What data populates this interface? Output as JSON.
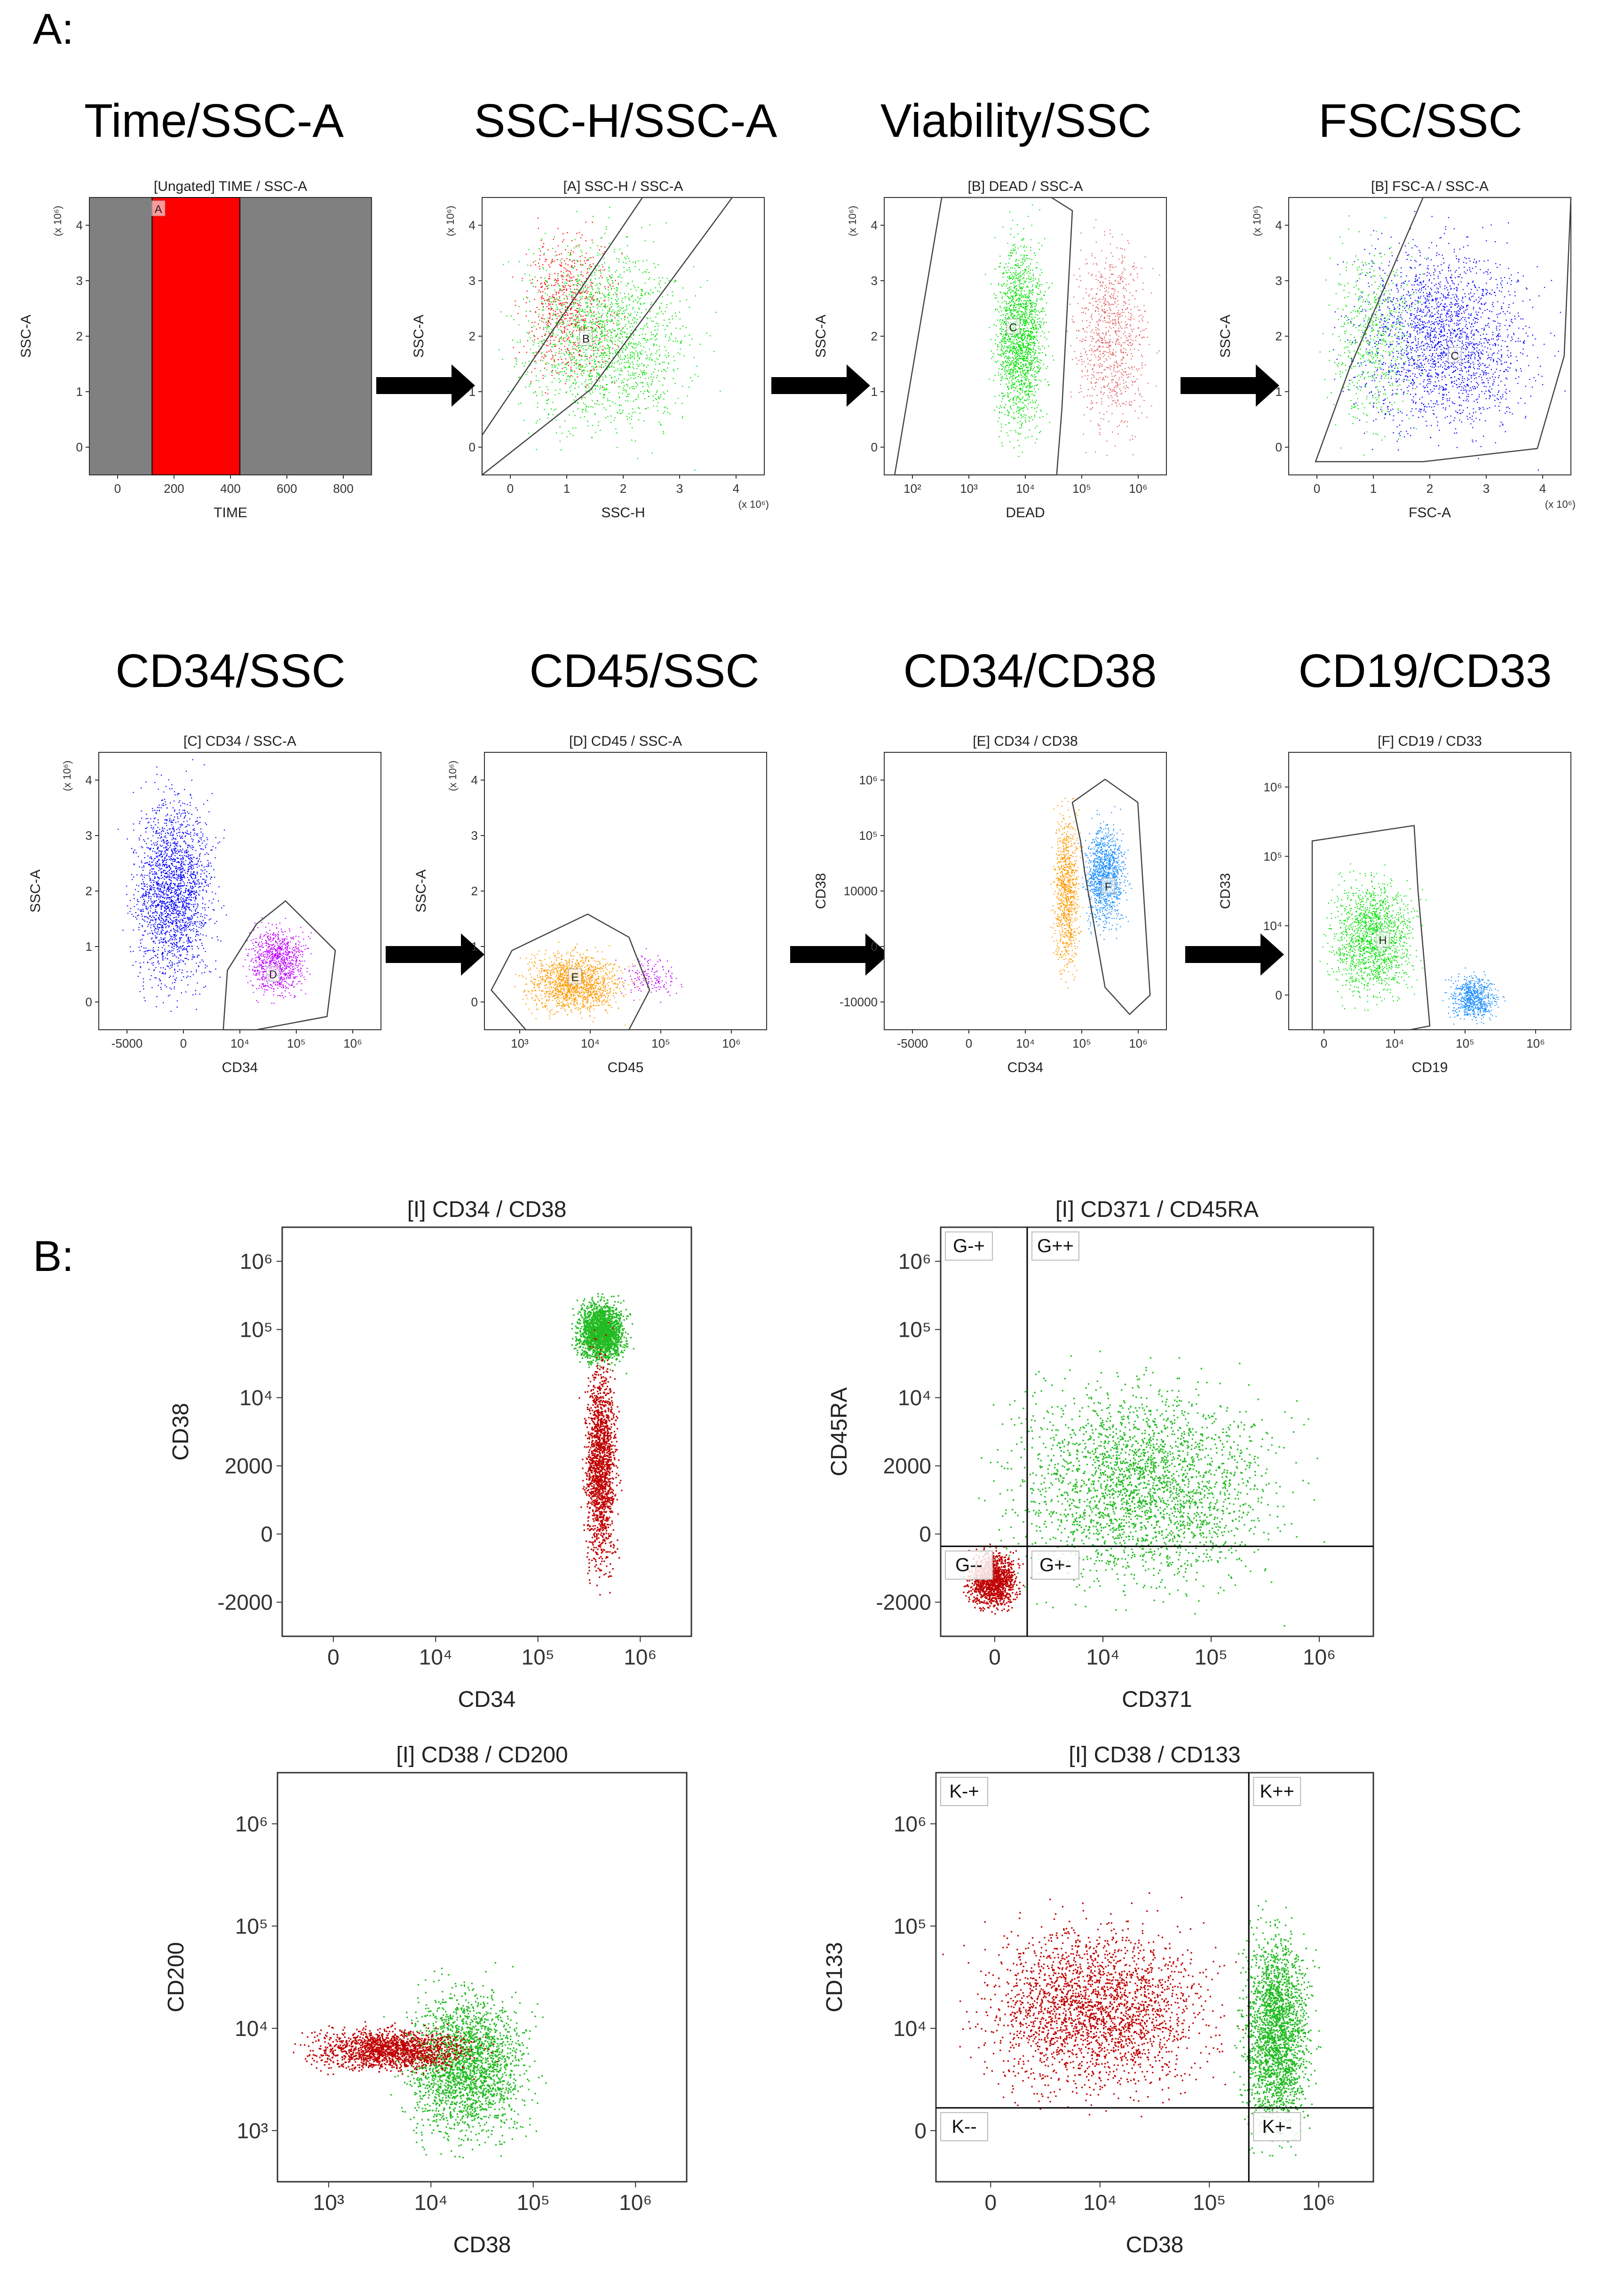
{
  "figure": {
    "panel_a_label": "A:",
    "panel_b_label": "B:",
    "row1_titles": [
      "Time/SSC-A",
      "SSC-H/SSC-A",
      "Viability/SSC",
      "FSC/SSC"
    ],
    "row2_titles": [
      "CD34/SSC",
      "CD45/SSC",
      "CD34/CD38",
      "CD19/CD33"
    ]
  },
  "colors": {
    "red": "#ff0000",
    "green": "#00e000",
    "blue": "#0000ff",
    "magenta": "#c000ff",
    "orange": "#ff9900",
    "light_blue": "#1e90ff",
    "salmon": "#e06060",
    "dark_red": "#c00000",
    "b_green": "#22bb22",
    "gray": "#808080"
  },
  "chart_data": [
    {
      "type": "scatter",
      "id": "time-ssc",
      "title": "[Ungated] TIME / SSC-A",
      "xlabel": "TIME",
      "ylabel": "SSC-A",
      "yunit": "(x 10⁶)",
      "xlim": [
        0,
        900
      ],
      "ylim": [
        0,
        4.2
      ],
      "xticks": [
        "0",
        "200",
        "400",
        "600",
        "800"
      ],
      "yticks": [
        "0",
        "1",
        "2",
        "3",
        "4"
      ],
      "background": "#808080",
      "highlight_band": {
        "x": [
          200,
          480
        ],
        "color": "#ff0000"
      },
      "gates": [
        {
          "label": "A",
          "x": [
            200,
            480
          ]
        }
      ]
    },
    {
      "type": "scatter",
      "id": "ssch-ssca",
      "title": "[A] SSC-H / SSC-A",
      "xlabel": "SSC-H",
      "ylabel": "SSC-A",
      "xunit": "(x 10⁶)",
      "yunit": "(x 10⁶)",
      "xlim": [
        0,
        4.4
      ],
      "ylim": [
        0,
        4.2
      ],
      "xticks": [
        "0",
        "1",
        "2",
        "3",
        "4"
      ],
      "yticks": [
        "0",
        "1",
        "2",
        "3",
        "4"
      ],
      "populations": [
        {
          "color": "#ff0000",
          "count": 700,
          "x_range": [
            0.3,
            2.4
          ],
          "y_range": [
            0.8,
            4.2
          ]
        },
        {
          "color": "#00e000",
          "count": 1800,
          "x_range": [
            0,
            3.8
          ],
          "y_range": [
            0,
            4.2
          ]
        }
      ],
      "gates": [
        {
          "label": "B",
          "points": [
            [
              0,
              0.6
            ],
            [
              2.5,
              4.2
            ],
            [
              3.9,
              4.2
            ],
            [
              1.7,
              1.3
            ],
            [
              0,
              0
            ]
          ]
        }
      ]
    },
    {
      "type": "scatter",
      "id": "dead-ssc",
      "title": "[B] DEAD / SSC-A",
      "xlabel": "DEAD",
      "ylabel": "SSC-A",
      "yunit": "(x 10⁶)",
      "xlim": [
        1.3,
        6.7
      ],
      "ylim": [
        0,
        4.2
      ],
      "xticks": [
        "10²",
        "10³",
        "10⁴",
        "10⁵",
        "10⁶"
      ],
      "yticks": [
        "0",
        "1",
        "2",
        "3",
        "4"
      ],
      "populations": [
        {
          "color": "#00e000",
          "count": 1800,
          "x_range": [
            3.2,
            4.6
          ],
          "y_range": [
            0,
            4.2
          ]
        },
        {
          "color": "#e06060",
          "count": 900,
          "x_range": [
            4.6,
            6.7
          ],
          "y_range": [
            0,
            4.2
          ]
        }
      ],
      "gates": [
        {
          "label": "C",
          "points": [
            [
              1.5,
              0
            ],
            [
              2.4,
              4.2
            ],
            [
              4.5,
              4.2
            ],
            [
              4.9,
              4.0
            ],
            [
              4.7,
              1.0
            ],
            [
              4.6,
              0
            ]
          ]
        }
      ]
    },
    {
      "type": "scatter",
      "id": "fsc-ssc",
      "title": "[B] FSC-A / SSC-A",
      "xlabel": "FSC-A",
      "ylabel": "SSC-A",
      "xunit": "(x 10⁶)",
      "yunit": "(x 10⁶)",
      "xlim": [
        0,
        4.2
      ],
      "ylim": [
        0,
        4.2
      ],
      "xticks": [
        "0",
        "1",
        "2",
        "3",
        "4"
      ],
      "yticks": [
        "0",
        "1",
        "2",
        "3",
        "4"
      ],
      "populations": [
        {
          "color": "#00e000",
          "count": 600,
          "x_range": [
            0.3,
            2.2
          ],
          "y_range": [
            0,
            4.2
          ]
        },
        {
          "color": "#0000ff",
          "count": 2200,
          "x_range": [
            0.4,
            4.2
          ],
          "y_range": [
            0,
            4.2
          ]
        }
      ],
      "gates": [
        {
          "label": "C",
          "points": [
            [
              0.4,
              0.2
            ],
            [
              0.9,
              1.6
            ],
            [
              2.0,
              4.2
            ],
            [
              4.2,
              4.2
            ],
            [
              4.1,
              1.8
            ],
            [
              3.7,
              0.4
            ],
            [
              2.0,
              0.2
            ]
          ]
        }
      ]
    },
    {
      "type": "scatter",
      "id": "cd34-ssc",
      "title": "[C] CD34 / SSC-A",
      "xlabel": "CD34",
      "ylabel": "SSC-A",
      "yunit": "(x 10⁶)",
      "xlim": [
        -0.2,
        6.6
      ],
      "ylim": [
        0,
        4.2
      ],
      "xticks": [
        "-5000",
        "0",
        "10⁴",
        "10⁵",
        "10⁶"
      ],
      "yticks": [
        "0",
        "1",
        "2",
        "3",
        "4"
      ],
      "populations": [
        {
          "color": "#0000ff",
          "count": 2200,
          "x_range": [
            0.2,
            3.0
          ],
          "y_range": [
            0,
            4.2
          ]
        },
        {
          "color": "#c000ff",
          "count": 900,
          "x_range": [
            3.1,
            5.1
          ],
          "y_range": [
            0.3,
            1.8
          ]
        }
      ],
      "gates": [
        {
          "label": "D",
          "points": [
            [
              2.8,
              0
            ],
            [
              2.9,
              0.9
            ],
            [
              3.6,
              1.6
            ],
            [
              4.3,
              1.95
            ],
            [
              5.5,
              1.2
            ],
            [
              5.3,
              0.2
            ],
            [
              3.6,
              0
            ]
          ]
        }
      ]
    },
    {
      "type": "scatter",
      "id": "cd45-ssc",
      "title": "[D] CD45 / SSC-A",
      "xlabel": "CD45",
      "ylabel": "SSC-A",
      "yunit": "(x 10⁶)",
      "xlim": [
        2.5,
        6.6
      ],
      "ylim": [
        0,
        4.2
      ],
      "xticks": [
        "10³",
        "10⁴",
        "10⁵",
        "10⁶"
      ],
      "yticks": [
        "0",
        "1",
        "2",
        "3",
        "4"
      ],
      "populations": [
        {
          "color": "#ff9900",
          "count": 1500,
          "x_range": [
            2.8,
            4.8
          ],
          "y_range": [
            0.05,
            1.4
          ]
        },
        {
          "color": "#c000ff",
          "count": 150,
          "x_range": [
            4.3,
            5.5
          ],
          "y_range": [
            0.3,
            1.3
          ]
        }
      ],
      "gates": [
        {
          "label": "E",
          "points": [
            [
              2.6,
              0.6
            ],
            [
              2.9,
              1.2
            ],
            [
              4.0,
              1.75
            ],
            [
              4.6,
              1.4
            ],
            [
              4.9,
              0.6
            ],
            [
              4.6,
              0
            ],
            [
              3.1,
              0
            ]
          ]
        }
      ]
    },
    {
      "type": "scatter",
      "id": "cd34-cd38",
      "title": "[E] CD34 / CD38",
      "xlabel": "CD34",
      "ylabel": "CD38",
      "xlim": [
        -0.3,
        6.6
      ],
      "ylim": [
        -0.6,
        6.6
      ],
      "xticks": [
        "-5000",
        "0",
        "10⁴",
        "10⁵",
        "10⁶"
      ],
      "yticks": [
        "-10000",
        "0",
        "10000",
        "10⁵",
        "10⁶"
      ],
      "populations": [
        {
          "color": "#ff9900",
          "count": 900,
          "x_range": [
            3.7,
            4.6
          ],
          "y_range": [
            0,
            6.0
          ]
        },
        {
          "color": "#1e90ff",
          "count": 1200,
          "x_range": [
            4.4,
            5.8
          ],
          "y_range": [
            1.5,
            5.3
          ]
        }
      ],
      "gates": [
        {
          "label": "F",
          "points": [
            [
              4.3,
              5.3
            ],
            [
              4.5,
              4.3
            ],
            [
              4.6,
              3.5
            ],
            [
              5.1,
              0.5
            ],
            [
              5.7,
              -0.2
            ],
            [
              6.2,
              0.3
            ],
            [
              5.9,
              5.3
            ],
            [
              5.1,
              5.9
            ]
          ]
        }
      ]
    },
    {
      "type": "scatter",
      "id": "cd19-cd33",
      "title": "[F] CD19 / CD33",
      "xlabel": "CD19",
      "ylabel": "CD33",
      "xlim": [
        -0.6,
        6.6
      ],
      "ylim": [
        -0.6,
        6.6
      ],
      "xticks": [
        "0",
        "10⁴",
        "10⁵",
        "10⁶"
      ],
      "yticks": [
        "0",
        "10⁴",
        "10⁵",
        "10⁶"
      ],
      "populations": [
        {
          "color": "#00e000",
          "count": 1500,
          "x_range": [
            0,
            3.1
          ],
          "y_range": [
            -0.4,
            4.0
          ]
        },
        {
          "color": "#1e90ff",
          "count": 700,
          "x_range": [
            3.2,
            5.0
          ],
          "y_range": [
            -0.6,
            1.1
          ]
        }
      ],
      "gates": [
        {
          "label": "H",
          "points": [
            [
              0,
              4.3
            ],
            [
              2.6,
              4.7
            ],
            [
              2.7,
              3.0
            ],
            [
              3.0,
              -0.5
            ],
            [
              2.5,
              -0.6
            ],
            [
              0,
              -0.6
            ]
          ]
        }
      ]
    },
    {
      "type": "scatter",
      "id": "b-cd34-cd38",
      "title": "[I] CD34 / CD38",
      "xlabel": "CD34",
      "ylabel": "CD38",
      "xlim": [
        -0.6,
        6.6
      ],
      "ylim": [
        -0.9,
        6.6
      ],
      "xticks": [
        "0",
        "10⁴",
        "10⁵",
        "10⁶"
      ],
      "yticks": [
        "-2000",
        "0",
        "2000",
        "10⁴",
        "10⁵",
        "10⁶"
      ],
      "populations": [
        {
          "color": "#22bb22",
          "count": 1800,
          "x_range": [
            4.4,
            5.6
          ],
          "y_range": [
            3.9,
            5.5
          ]
        },
        {
          "color": "#c00000",
          "count": 1600,
          "x_range": [
            4.6,
            5.4
          ],
          "y_range": [
            -0.5,
            5.0
          ]
        }
      ]
    },
    {
      "type": "scatter",
      "id": "b-cd371-cd45ra",
      "title": "[I] CD371 / CD45RA",
      "xlabel": "CD371",
      "ylabel": "CD45RA",
      "xlim": [
        -0.9,
        6.6
      ],
      "ylim": [
        -0.9,
        6.6
      ],
      "xticks": [
        "0",
        "10⁴",
        "10⁵",
        "10⁶"
      ],
      "yticks": [
        "-2000",
        "0",
        "2000",
        "10⁴",
        "10⁵",
        "10⁶"
      ],
      "quadrant": {
        "x": 0.6,
        "y": 0.75
      },
      "quadrant_labels": [
        "G-+",
        "G++",
        "G--",
        "G+-"
      ],
      "populations": [
        {
          "color": "#22bb22",
          "count": 2600,
          "x_range": [
            -0.7,
            5.9
          ],
          "y_range": [
            -0.8,
            4.6
          ]
        },
        {
          "color": "#c00000",
          "count": 1200,
          "x_range": [
            -0.6,
            0.6
          ],
          "y_range": [
            -0.6,
            0.9
          ]
        }
      ]
    },
    {
      "type": "scatter",
      "id": "b-cd38-cd200",
      "title": "[I] CD38 / CD200",
      "xlabel": "CD38",
      "ylabel": "CD200",
      "xlim": [
        2.6,
        6.6
      ],
      "ylim": [
        2.6,
        6.6
      ],
      "xticks": [
        "10³",
        "10⁴",
        "10⁵",
        "10⁶"
      ],
      "yticks": [
        "10³",
        "10⁴",
        "10⁵",
        "10⁶"
      ],
      "populations": [
        {
          "color": "#22bb22",
          "count": 2200,
          "x_range": [
            3.6,
            5.3
          ],
          "y_range": [
            2.7,
            4.8
          ]
        },
        {
          "color": "#c00000",
          "count": 1600,
          "x_range": [
            2.6,
            4.8
          ],
          "y_range": [
            3.6,
            4.2
          ]
        }
      ]
    },
    {
      "type": "scatter",
      "id": "b-cd38-cd133",
      "title": "[I] CD38 / CD133",
      "xlabel": "CD38",
      "ylabel": "CD133",
      "xlim": [
        -0.6,
        6.6
      ],
      "ylim": [
        -0.6,
        6.6
      ],
      "xticks": [
        "0",
        "10⁴",
        "10⁵",
        "10⁶"
      ],
      "yticks": [
        "0",
        "10⁴",
        "10⁵",
        "10⁶"
      ],
      "quadrant": {
        "x": 4.55,
        "y": 0.7
      },
      "quadrant_labels": [
        "K-+",
        "K++",
        "K--",
        "K+-"
      ],
      "populations": [
        {
          "color": "#c00000",
          "count": 2400,
          "x_range": [
            -0.6,
            4.7
          ],
          "y_range": [
            0.3,
            4.6
          ]
        },
        {
          "color": "#22bb22",
          "count": 2200,
          "x_range": [
            4.2,
            5.8
          ],
          "y_range": [
            -0.5,
            4.6
          ]
        }
      ]
    }
  ]
}
